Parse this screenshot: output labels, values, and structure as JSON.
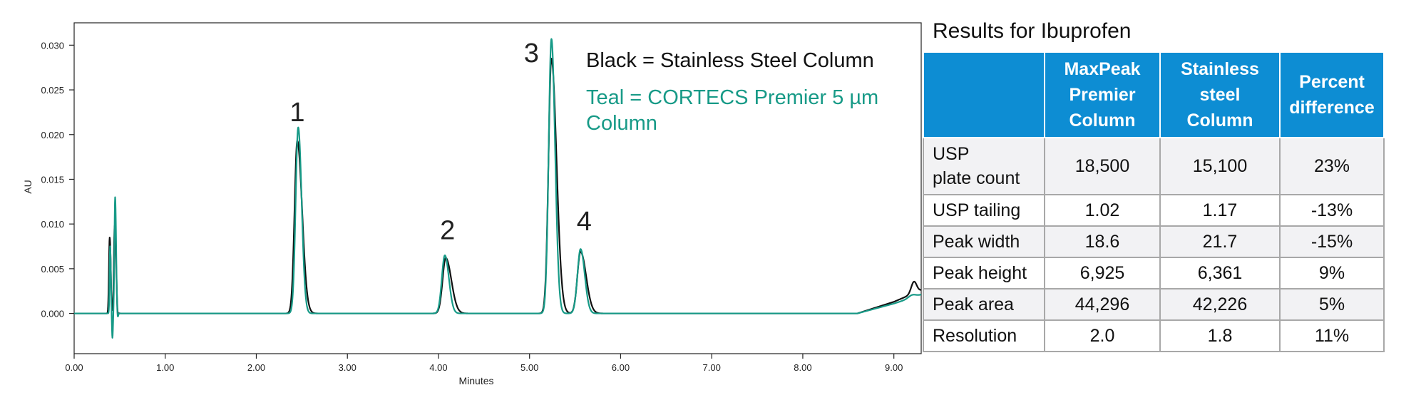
{
  "chart_data": {
    "type": "line",
    "title": "",
    "xlabel": "Minutes",
    "ylabel": "AU",
    "xlim": [
      0,
      9.3
    ],
    "ylim": [
      -0.0045,
      0.0325
    ],
    "x_ticks": [
      "0.00",
      "1.00",
      "2.00",
      "3.00",
      "4.00",
      "5.00",
      "6.00",
      "7.00",
      "8.00",
      "9.00"
    ],
    "y_ticks": [
      "0.000",
      "0.005",
      "0.010",
      "0.015",
      "0.020",
      "0.025",
      "0.030"
    ],
    "grid": false,
    "legend": [
      {
        "text": "Black = Stainless Steel Column",
        "color": "#111111"
      },
      {
        "text": "Teal = CORTECS Premier 5 µm",
        "text2": "Column",
        "color": "#179a87"
      }
    ],
    "peak_labels": [
      {
        "text": "1",
        "x": 2.45,
        "y": 0.0215
      },
      {
        "text": "2",
        "x": 4.1,
        "y": 0.0083
      },
      {
        "text": "3",
        "x": 5.02,
        "y": 0.0281
      },
      {
        "text": "4",
        "x": 5.6,
        "y": 0.0093
      }
    ],
    "series": [
      {
        "name": "Stainless Steel Column",
        "color": "#111111",
        "peaks": [
          {
            "t": 0.39,
            "h": 0.0085,
            "w": 0.008
          },
          {
            "t": 0.41,
            "h": -0.002,
            "w": 0.006
          },
          {
            "t": 0.445,
            "h": 0.0098,
            "w": 0.009
          },
          {
            "t": 0.475,
            "h": -0.001,
            "w": 0.008
          },
          {
            "t": 2.45,
            "h": 0.0193,
            "w": 0.03
          },
          {
            "t": 4.08,
            "h": 0.0062,
            "w": 0.035
          },
          {
            "t": 5.24,
            "h": 0.0285,
            "w": 0.032
          },
          {
            "t": 5.56,
            "h": 0.0069,
            "w": 0.035
          },
          {
            "t": 9.22,
            "h": 0.0013,
            "w": 0.03
          }
        ],
        "tail": 0.75,
        "drift": [
          [
            8.6,
            0.0
          ],
          [
            9.0,
            0.0013
          ],
          [
            9.3,
            0.0026
          ]
        ]
      },
      {
        "name": "CORTECS Premier 5 µm Column",
        "color": "#179a87",
        "peaks": [
          {
            "t": 0.395,
            "h": 0.0075,
            "w": 0.006
          },
          {
            "t": 0.42,
            "h": -0.0028,
            "w": 0.006
          },
          {
            "t": 0.45,
            "h": 0.013,
            "w": 0.008
          },
          {
            "t": 0.475,
            "h": -0.0008,
            "w": 0.007
          },
          {
            "t": 2.46,
            "h": 0.0208,
            "w": 0.028
          },
          {
            "t": 4.07,
            "h": 0.0065,
            "w": 0.033
          },
          {
            "t": 5.24,
            "h": 0.0307,
            "w": 0.03
          },
          {
            "t": 5.56,
            "h": 0.0072,
            "w": 0.034
          },
          {
            "t": 9.2,
            "h": 0.0003,
            "w": 0.04
          }
        ],
        "tail": 0.35,
        "drift": [
          [
            8.6,
            0.0
          ],
          [
            9.0,
            0.0011
          ],
          [
            9.3,
            0.0021
          ]
        ]
      }
    ]
  },
  "results": {
    "title": "Results for Ibuprofen",
    "columns": [
      "",
      "MaxPeak\nPremier\nColumn",
      "Stainless\nsteel\nColumn",
      "Percent\ndifference"
    ],
    "rows": [
      [
        "USP\nplate count",
        "18,500",
        "15,100",
        "23%"
      ],
      [
        "USP tailing",
        "1.02",
        "1.17",
        "-13%"
      ],
      [
        "Peak width",
        "18.6",
        "21.7",
        "-15%"
      ],
      [
        "Peak height",
        "6,925",
        "6,361",
        "9%"
      ],
      [
        "Peak area",
        "44,296",
        "42,226",
        "5%"
      ],
      [
        "Resolution",
        "2.0",
        "1.8",
        "11%"
      ]
    ]
  }
}
